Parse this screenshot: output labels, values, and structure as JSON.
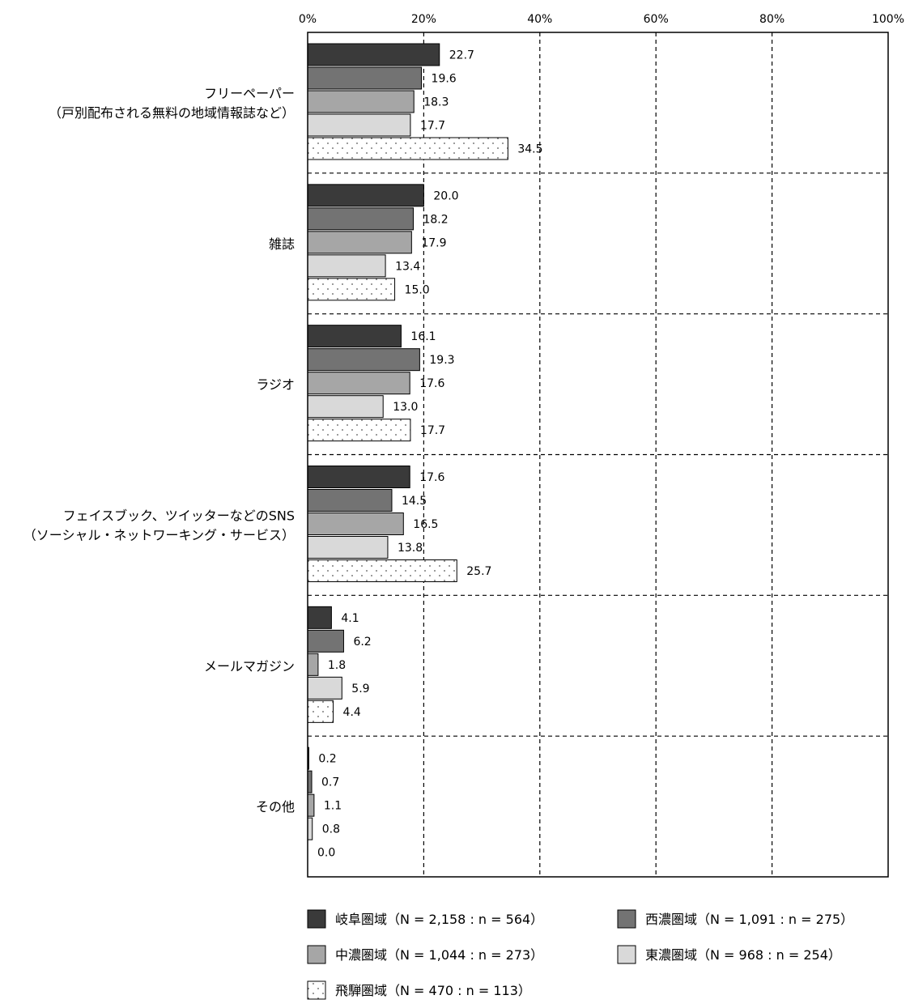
{
  "chart_data": {
    "type": "bar",
    "orientation": "horizontal",
    "xlim": [
      0,
      100
    ],
    "x_ticks": [
      "0%",
      "20%",
      "40%",
      "60%",
      "80%",
      "100%"
    ],
    "grid": "dashed vertical and horizontal separators",
    "legend_position": "bottom",
    "categories": [
      [
        "フリーペーパー",
        "（戸別配布される無料の地域情報誌など）"
      ],
      [
        "雑誌"
      ],
      [
        "ラジオ"
      ],
      [
        "フェイスブック、ツイッターなどのSNS",
        "（ソーシャル・ネットワーキング・サービス）"
      ],
      [
        "メールマガジン"
      ],
      [
        "その他"
      ]
    ],
    "series": [
      {
        "name": "岐阜圏域（N = 2,158 : n = 564）",
        "fill": "#3a3a3a",
        "pattern": "solid",
        "values": [
          22.7,
          20.0,
          16.1,
          17.6,
          4.1,
          0.2
        ]
      },
      {
        "name": "西濃圏域（N = 1,091 : n = 275）",
        "fill": "#737373",
        "pattern": "solid",
        "values": [
          19.6,
          18.2,
          19.3,
          14.5,
          6.2,
          0.7
        ]
      },
      {
        "name": "中濃圏域（N = 1,044 : n = 273）",
        "fill": "#a6a6a6",
        "pattern": "solid",
        "values": [
          18.3,
          17.9,
          17.6,
          16.5,
          1.8,
          1.1
        ]
      },
      {
        "name": "東濃圏域（N = 968 : n = 254）",
        "fill": "#d9d9d9",
        "pattern": "solid",
        "values": [
          17.7,
          13.4,
          13.0,
          13.8,
          5.9,
          0.8
        ]
      },
      {
        "name": "飛騨圏域（N = 470 : n = 113）",
        "fill": "#ffffff",
        "pattern": "dots",
        "values": [
          34.5,
          15.0,
          17.7,
          25.7,
          4.4,
          0.0
        ]
      }
    ]
  }
}
